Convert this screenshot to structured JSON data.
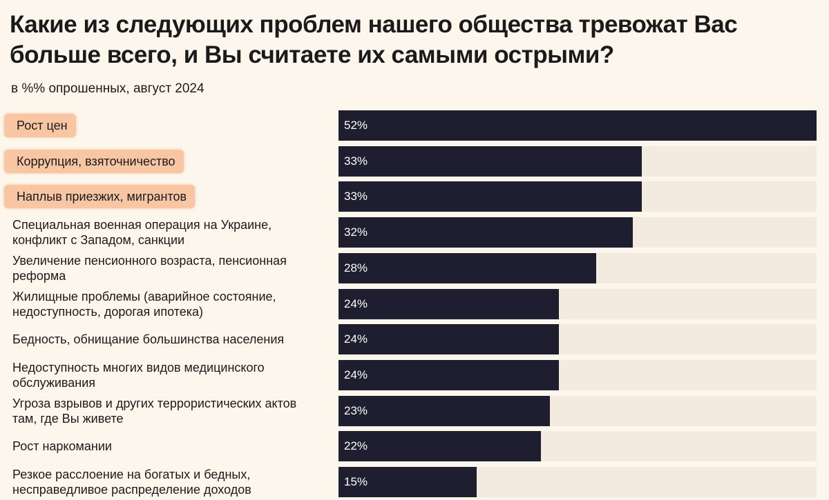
{
  "chart_data": {
    "type": "bar",
    "orientation": "horizontal",
    "title": "Какие из следующих проблем нашего общества тревожат Вас больше всего, и Вы считаете их самыми острыми?",
    "subtitle": "в %% опрошенных, август 2024",
    "xlim": [
      0,
      52
    ],
    "grid": false,
    "colors": {
      "bar": "#1f1d30",
      "track": "#f3ebe0",
      "highlight": "#f9c6a4",
      "background": "#fdf6ec"
    },
    "categories": [
      "Рост цен",
      "Коррупция, взяточничество",
      "Наплыв приезжих, мигрантов",
      "Специальная военная операция на Украине, конфликт с Западом, санкции",
      "Увеличение пенсионного возраста, пенсионная реформа",
      "Жилищные проблемы (аварийное состояние, недоступность, дорогая ипотека)",
      "Бедность, обнищание большинства населения",
      "Недоступность многих видов медицинского обслуживания",
      "Угроза взрывов и других террористических актов там, где Вы живете",
      "Рост наркомании",
      "Резкое расслоение на богатых и бедных, несправедливое распределение доходов"
    ],
    "values": [
      52,
      33,
      33,
      32,
      28,
      24,
      24,
      24,
      23,
      22,
      15
    ],
    "value_labels": [
      "52%",
      "33%",
      "33%",
      "32%",
      "28%",
      "24%",
      "24%",
      "24%",
      "23%",
      "22%",
      "15%"
    ],
    "highlighted": [
      true,
      true,
      true,
      false,
      false,
      false,
      false,
      false,
      false,
      false,
      false
    ]
  }
}
